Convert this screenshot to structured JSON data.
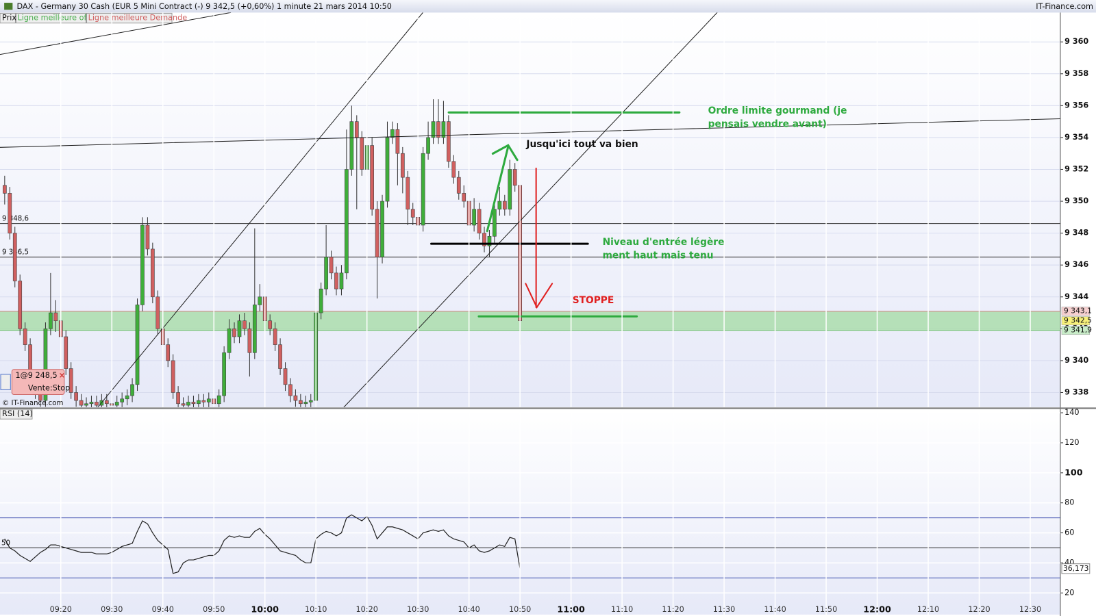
{
  "header": {
    "title": "DAX - Germany 30 Cash (EUR 5 Mini Contract (-)    9 342,5 (+0,60%)    1 minute   21 mars 2014 10:50",
    "source": "IT-Finance.com"
  },
  "toolbar": {
    "price": "Prix",
    "offer": "Ligne meilleure offre",
    "demand": "Ligne meilleure Demande"
  },
  "order": {
    "label": "1@9 248,5",
    "type": "Vente:Stop"
  },
  "watermark": "© IT-Finance.com",
  "chart_data": [
    {
      "type": "candlestick",
      "up_color": "#3fae3a",
      "down_color": "#d06060",
      "xlim": [
        548.08,
        755.9
      ],
      "ylim": [
        9337.08,
        9361.84
      ],
      "yticks": [
        {
          "value": 9338,
          "label": "9 338"
        },
        {
          "value": 9340,
          "label": "9 340"
        },
        {
          "value": 9342,
          "label": "9 342"
        },
        {
          "value": 9344,
          "label": "9 344"
        },
        {
          "value": 9346,
          "label": "9 346"
        },
        {
          "value": 9348,
          "label": "9 348"
        },
        {
          "value": 9350,
          "label": "9 350"
        },
        {
          "value": 9352,
          "label": "9 352"
        },
        {
          "value": 9354,
          "label": "9 354"
        },
        {
          "value": 9356,
          "label": "9 356"
        },
        {
          "value": 9358,
          "label": "9 358"
        },
        {
          "value": 9360,
          "label": "9 360"
        }
      ],
      "grid": true,
      "levels": [
        {
          "value": 9348.6,
          "label": "9 348,6"
        },
        {
          "value": 9346.5,
          "label": "9 346,5"
        }
      ],
      "zone": [
        9341.9,
        9343.1
      ],
      "zone_color": "#a8dca8",
      "price_labels": [
        {
          "value": 9343.1,
          "label": "9 343,1",
          "color": "#f6cfcf"
        },
        {
          "value": 9342.5,
          "label": "9 342,5",
          "color": "#f7f07a"
        },
        {
          "value": 9341.9,
          "label": "9 341,9",
          "color": "#c8ecc8"
        }
      ],
      "annotations": [
        {
          "lines": [
            "Ordre limite gourmand (je",
            "pensais vendre avant)"
          ],
          "color": "#2eaa3f"
        },
        {
          "lines": [
            "Jusqu'ici tout va bien"
          ],
          "color": "#111111"
        },
        {
          "lines": [
            "Niveau d'entrée légère",
            "ment haut mais tenu"
          ],
          "color": "#2eaa3f"
        },
        {
          "lines": [
            "STOPPE"
          ],
          "color": "#e02020"
        }
      ],
      "x": [
        549,
        550,
        551,
        552,
        553,
        554,
        555,
        556,
        557,
        558,
        559,
        560,
        561,
        562,
        563,
        564,
        565,
        566,
        567,
        568,
        569,
        570,
        571,
        572,
        573,
        574,
        575,
        576,
        577,
        578,
        579,
        580,
        581,
        582,
        583,
        584,
        585,
        586,
        587,
        588,
        589,
        590,
        591,
        592,
        593,
        594,
        595,
        596,
        597,
        598,
        599,
        600,
        601,
        602,
        603,
        604,
        605,
        606,
        607,
        608,
        609,
        610,
        611,
        612,
        613,
        614,
        615,
        616,
        617,
        618,
        619,
        620,
        621,
        622,
        623,
        624,
        625,
        626,
        627,
        628,
        629,
        630,
        631,
        632,
        633,
        634,
        635,
        636,
        637,
        638,
        639,
        640,
        641,
        642,
        643,
        644,
        645,
        646,
        647,
        648,
        649,
        650
      ],
      "open": [
        9351,
        9350.5,
        9348,
        9345,
        9342,
        9341,
        9339,
        9338,
        9337.5,
        9342,
        9343,
        9342.5,
        9341.5,
        9339.5,
        9338,
        9337.5,
        9337.2,
        9337.3,
        9337.4,
        9337.2,
        9337.5,
        9337.3,
        9337.2,
        9337.4,
        9337.6,
        9337.8,
        9338.5,
        9343.5,
        9348.5,
        9347,
        9344,
        9342,
        9341,
        9340,
        9338,
        9337.3,
        9337.2,
        9337.4,
        9337.3,
        9337.5,
        9337.4,
        9337.6,
        9337.3,
        9337.8,
        9340.5,
        9342,
        9341.5,
        9342.5,
        9342,
        9340.5,
        9343.5,
        9344,
        9342.5,
        9342,
        9341,
        9339.5,
        9338.5,
        9337.8,
        9337.5,
        9337.3,
        9337.4,
        9337.5,
        9343,
        9344.5,
        9346.5,
        9345.5,
        9344.5,
        9345.5,
        9352,
        9355,
        9354,
        9352,
        9353.5,
        9349.5,
        9346.5,
        9350,
        9354,
        9354.5,
        9353,
        9351.5,
        9349.5,
        9349,
        9348.5,
        9353,
        9354,
        9355,
        9354,
        9355,
        9352.5,
        9351.5,
        9350.5,
        9350,
        9348.5,
        9349.5,
        9348,
        9347.2,
        9347.8,
        9349.5,
        9350,
        9349.5,
        9352,
        9351
      ],
      "high": [
        9351.6,
        9350.9,
        9348.4,
        9345.4,
        9342.4,
        9341.4,
        9339.4,
        9338.4,
        9342.4,
        9345.5,
        9343.8,
        9342.9,
        9341.9,
        9339.9,
        9338.4,
        9337.9,
        9337.7,
        9337.8,
        9337.8,
        9337.9,
        9337.9,
        9337.7,
        9337.8,
        9338,
        9338.2,
        9338.9,
        9343.9,
        9349,
        9349,
        9347.4,
        9344.4,
        9342.4,
        9341.4,
        9340.4,
        9338.4,
        9337.7,
        9337.8,
        9337.8,
        9337.9,
        9337.9,
        9338,
        9338,
        9338.2,
        9340.9,
        9342.6,
        9342.4,
        9342.9,
        9343,
        9342.4,
        9348.3,
        9344.8,
        9344.4,
        9342.9,
        9342.4,
        9341.4,
        9339.9,
        9338.9,
        9338.2,
        9337.9,
        9337.8,
        9337.9,
        9343.4,
        9344.9,
        9348.5,
        9346.9,
        9345.9,
        9346,
        9354.5,
        9356,
        9355.4,
        9354.4,
        9357.3,
        9354,
        9350,
        9350.4,
        9355,
        9355,
        9354.9,
        9353.4,
        9351.9,
        9349.9,
        9349.4,
        9353.4,
        9355,
        9356.4,
        9356.4,
        9356.3,
        9355.4,
        9352.9,
        9351.9,
        9351,
        9350.4,
        9350.2,
        9349.9,
        9348.4,
        9348.2,
        9349.9,
        9350.9,
        9350.4,
        9352.6,
        9352.4,
        9351.6
      ],
      "low": [
        9349.8,
        9347.6,
        9344.6,
        9341.6,
        9340.6,
        9338.6,
        9337.6,
        9337.1,
        9337.1,
        9341.6,
        9341.8,
        9341.1,
        9339.1,
        9337.6,
        9337.1,
        9336.8,
        9336.8,
        9336.9,
        9336.8,
        9336.8,
        9336.9,
        9336.8,
        9336.8,
        9337,
        9337.2,
        9337.4,
        9338.1,
        9343.1,
        9346.6,
        9343.6,
        9341.6,
        9340.6,
        9339.6,
        9337.6,
        9336.9,
        9336.8,
        9336.8,
        9336.9,
        9336.9,
        9337,
        9337,
        9336.9,
        9336.9,
        9337.4,
        9340.1,
        9341.1,
        9341.1,
        9341.6,
        9339,
        9340.1,
        9343.1,
        9342.1,
        9341.6,
        9340.6,
        9339.1,
        9338.1,
        9337.4,
        9337.1,
        9336.9,
        9336.9,
        9337,
        9337.1,
        9342.6,
        9344.1,
        9345.1,
        9344.1,
        9344.1,
        9345.1,
        9351.6,
        9349.5,
        9351.6,
        9351.6,
        9349.1,
        9343.9,
        9346.1,
        9349.6,
        9353.6,
        9351,
        9350.5,
        9348.5,
        9348.5,
        9348.1,
        9348.1,
        9352.6,
        9353.6,
        9353.6,
        9353.6,
        9352.1,
        9351.1,
        9350.1,
        9349.6,
        9348.1,
        9348.1,
        9347.6,
        9346.8,
        9346.5,
        9347.4,
        9349.1,
        9349.1,
        9349.1,
        9350.6,
        9341
      ],
      "close": [
        9350.5,
        9348,
        9345,
        9342,
        9341,
        9339,
        9338,
        9337.5,
        9342,
        9343,
        9342.5,
        9341.5,
        9339.5,
        9338,
        9337.5,
        9337.2,
        9337.3,
        9337.4,
        9337.2,
        9337.5,
        9337.3,
        9337.2,
        9337.4,
        9337.6,
        9337.8,
        9338.5,
        9343.5,
        9348.5,
        9347,
        9344,
        9342,
        9341,
        9340,
        9338,
        9337.3,
        9337.2,
        9337.4,
        9337.3,
        9337.5,
        9337.4,
        9337.6,
        9337.3,
        9337.8,
        9340.5,
        9342,
        9341.5,
        9342.5,
        9342,
        9340.5,
        9343.5,
        9344,
        9342.5,
        9342,
        9341,
        9339.5,
        9338.5,
        9337.8,
        9337.5,
        9337.3,
        9337.4,
        9337.5,
        9343,
        9344.5,
        9346.5,
        9345.5,
        9344.5,
        9345.5,
        9352,
        9355,
        9354,
        9352,
        9353.5,
        9349.5,
        9346.5,
        9350,
        9354,
        9354.5,
        9353,
        9351.5,
        9349.5,
        9349,
        9348.5,
        9353,
        9354,
        9355,
        9354,
        9355,
        9352.5,
        9351.5,
        9350.5,
        9350,
        9348.5,
        9349.5,
        9348,
        9347.2,
        9347.8,
        9349.5,
        9350,
        9349.5,
        9352,
        9351,
        9342.5
      ]
    },
    {
      "type": "line",
      "title": "RSI (14)",
      "xlim": [
        548.08,
        755.9
      ],
      "ylim": [
        5.58,
        142.33
      ],
      "yticks": [
        20,
        40,
        60,
        80,
        100,
        120,
        140
      ],
      "xticks": [
        {
          "value": 560,
          "label": "09:20"
        },
        {
          "value": 570,
          "label": "09:30"
        },
        {
          "value": 580,
          "label": "09:40"
        },
        {
          "value": 590,
          "label": "09:50"
        },
        {
          "value": 600,
          "label": "10:00"
        },
        {
          "value": 610,
          "label": "10:10"
        },
        {
          "value": 620,
          "label": "10:20"
        },
        {
          "value": 630,
          "label": "10:30"
        },
        {
          "value": 640,
          "label": "10:40"
        },
        {
          "value": 650,
          "label": "10:50"
        },
        {
          "value": 660,
          "label": "11:00"
        },
        {
          "value": 670,
          "label": "11:10"
        },
        {
          "value": 680,
          "label": "11:20"
        },
        {
          "value": 690,
          "label": "11:30"
        },
        {
          "value": 700,
          "label": "11:40"
        },
        {
          "value": 710,
          "label": "11:50"
        },
        {
          "value": 720,
          "label": "12:00"
        },
        {
          "value": 730,
          "label": "12:10"
        },
        {
          "value": 740,
          "label": "12:20"
        },
        {
          "value": 750,
          "label": "12:30"
        }
      ],
      "levels": [
        70,
        50,
        30
      ],
      "last_value": {
        "value": 36.173,
        "label": "36,173"
      },
      "x": [
        549,
        550,
        551,
        552,
        553,
        554,
        555,
        556,
        557,
        558,
        559,
        560,
        561,
        562,
        563,
        564,
        565,
        566,
        567,
        568,
        569,
        570,
        571,
        572,
        573,
        574,
        575,
        576,
        577,
        578,
        579,
        580,
        581,
        582,
        583,
        584,
        585,
        586,
        587,
        588,
        589,
        590,
        591,
        592,
        593,
        594,
        595,
        596,
        597,
        598,
        599,
        600,
        601,
        602,
        603,
        604,
        605,
        606,
        607,
        608,
        609,
        610,
        611,
        612,
        613,
        614,
        615,
        616,
        617,
        618,
        619,
        620,
        621,
        622,
        623,
        624,
        625,
        626,
        627,
        628,
        629,
        630,
        631,
        632,
        633,
        634,
        635,
        636,
        637,
        638,
        639,
        640,
        641,
        642,
        643,
        644,
        645,
        646,
        647,
        648,
        649,
        650
      ],
      "series": [
        {
          "name": "RSI (14)",
          "color": "#222222",
          "values": [
            56,
            50,
            48,
            45,
            43,
            41,
            44,
            47,
            49,
            52,
            52,
            51,
            50,
            49,
            48,
            47,
            47,
            47,
            46,
            46,
            46,
            47,
            49,
            51,
            52,
            53,
            61,
            68,
            66,
            60,
            55,
            52,
            49,
            33,
            34,
            40,
            42,
            42,
            43,
            44,
            45,
            45,
            48,
            55,
            58,
            57,
            58,
            57,
            57,
            61,
            63,
            59,
            56,
            52,
            48,
            47,
            46,
            45,
            42,
            40,
            40,
            56,
            59,
            61,
            60,
            58,
            60,
            70,
            72,
            70,
            68,
            71,
            65,
            56,
            60,
            64,
            64,
            63,
            62,
            60,
            58,
            56,
            60,
            61,
            62,
            61,
            62,
            58,
            56,
            55,
            54,
            50,
            52,
            48,
            47,
            48,
            50,
            52,
            51,
            57,
            56,
            36.173
          ]
        }
      ]
    }
  ]
}
